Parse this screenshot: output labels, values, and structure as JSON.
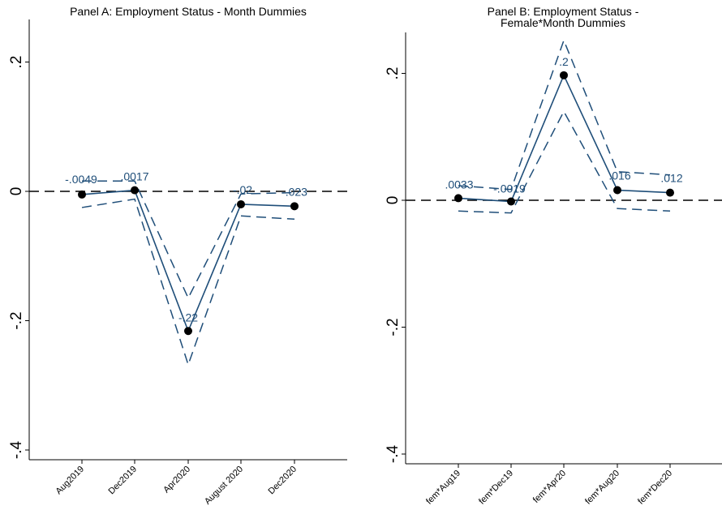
{
  "chart_data": [
    {
      "type": "line",
      "title": "Panel A: Employment Status - Month Dummies",
      "categories": [
        "Aug2019",
        "Dec2019",
        "Apr2020",
        "August 2020",
        "Dec2020"
      ],
      "series": [
        {
          "values": [
            -0.0049,
            0.0017,
            -0.216,
            -0.02,
            -0.023
          ]
        }
      ],
      "ci_lower": [
        -0.025,
        -0.012,
        -0.268,
        -0.038,
        -0.043
      ],
      "ci_upper": [
        0.016,
        0.016,
        -0.165,
        -0.004,
        -0.002
      ],
      "data_labels": [
        "-.0049",
        ".0017",
        "-.22",
        "-.02",
        "-.023"
      ],
      "y_ticks": [
        -0.4,
        -0.2,
        0,
        0.2
      ],
      "y_tick_labels": [
        "-.4",
        "-.2",
        "0",
        ".2"
      ],
      "ylim": [
        -0.41,
        0.265
      ],
      "reference_line": 0,
      "grid": false,
      "colors": {
        "line": "#1f4e79",
        "marker": "#000000",
        "reference": "#000000"
      }
    },
    {
      "type": "line",
      "title": "Panel B: Employment Status - Female*Month Dummies",
      "title_lines": [
        "Panel B: Employment Status -",
        "Female*Month Dummies"
      ],
      "categories": [
        "fem*Aug19",
        "fem*Dec19",
        "fem*Apr20",
        "fem*Aug20",
        "fem*Dec20"
      ],
      "series": [
        {
          "values": [
            0.0033,
            -0.0019,
            0.197,
            0.016,
            0.012
          ]
        }
      ],
      "ci_lower": [
        -0.017,
        -0.02,
        0.14,
        -0.013,
        -0.017
      ],
      "ci_upper": [
        0.023,
        0.017,
        0.252,
        0.045,
        0.04
      ],
      "data_labels": [
        ".0033",
        "-.0019",
        ".2",
        ".016",
        ".012"
      ],
      "y_ticks": [
        -0.4,
        -0.2,
        0,
        0.2
      ],
      "y_tick_labels": [
        "-.4",
        "-.2",
        "0",
        ".2"
      ],
      "ylim": [
        -0.41,
        0.265
      ],
      "reference_line": 0,
      "grid": false,
      "colors": {
        "line": "#1f4e79",
        "marker": "#000000",
        "reference": "#000000"
      }
    }
  ]
}
